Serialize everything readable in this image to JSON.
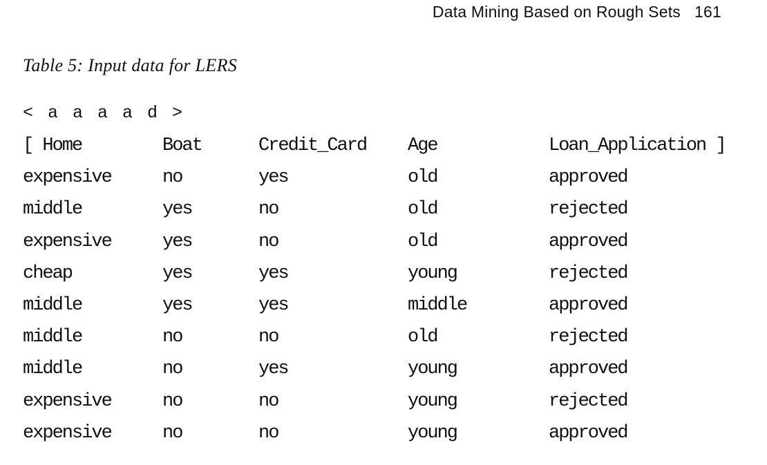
{
  "header": {
    "running_title": "Data Mining Based on Rough Sets",
    "page_number": "161"
  },
  "caption": "Table 5: Input data for LERS",
  "declaration": "< a a a a d >",
  "table": {
    "header": [
      "[ Home",
      "Boat",
      "Credit_Card",
      "Age",
      "Loan_Application ]"
    ],
    "rows": [
      [
        "expensive",
        "no",
        "yes",
        "old",
        "approved"
      ],
      [
        "middle",
        "yes",
        "no",
        "old",
        "rejected"
      ],
      [
        "expensive",
        "yes",
        "no",
        "old",
        "approved"
      ],
      [
        "cheap",
        "yes",
        "yes",
        "young",
        "rejected"
      ],
      [
        "middle",
        "yes",
        "yes",
        "middle",
        "approved"
      ],
      [
        "middle",
        "no",
        "no",
        "old",
        "rejected"
      ],
      [
        "middle",
        "no",
        "yes",
        "young",
        "approved"
      ],
      [
        "expensive",
        "no",
        "no",
        "young",
        "rejected"
      ],
      [
        "expensive",
        "no",
        "no",
        "young",
        "approved"
      ]
    ]
  }
}
